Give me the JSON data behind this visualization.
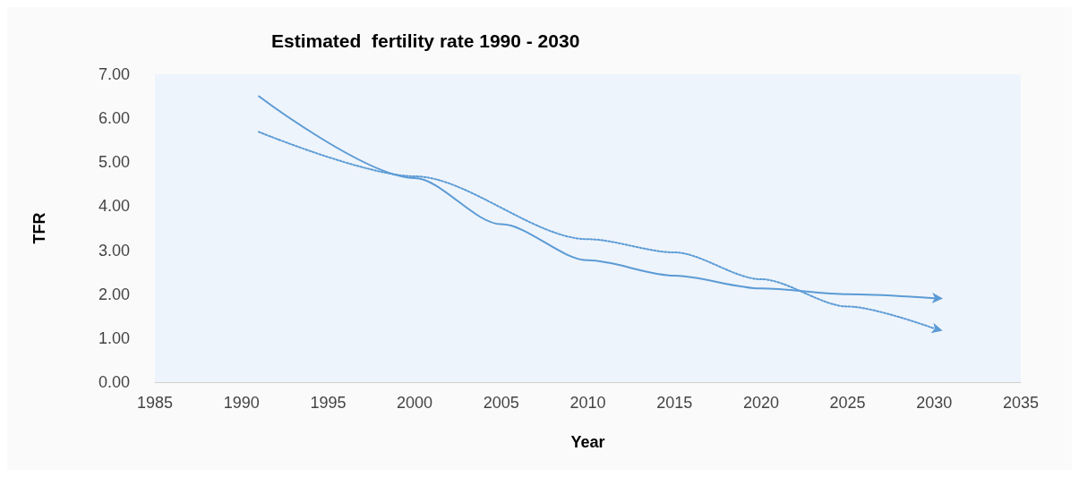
{
  "chart_data": {
    "type": "line",
    "title": "Estimated  fertility rate 1990 - 2030",
    "xlabel": "Year",
    "ylabel": "TFR",
    "xlim": [
      1985,
      2035
    ],
    "xticks": [
      1985,
      1990,
      1995,
      2000,
      2005,
      2010,
      2015,
      2020,
      2025,
      2030,
      2035
    ],
    "ylim": [
      0,
      7
    ],
    "yticks": [
      {
        "value": 0,
        "label": "0.00"
      },
      {
        "value": 1,
        "label": "1.00"
      },
      {
        "value": 2,
        "label": "2.00"
      },
      {
        "value": 3,
        "label": "3.00"
      },
      {
        "value": 4,
        "label": "4.00"
      },
      {
        "value": 5,
        "label": "5.00"
      },
      {
        "value": 6,
        "label": "6.00"
      },
      {
        "value": 7,
        "label": "7.00"
      }
    ],
    "grid": false,
    "marker": "none",
    "series": [
      {
        "color": "#5b9bd5",
        "line_style": "solid",
        "x": [
          1991,
          2000,
          2005,
          2010,
          2015,
          2020,
          2025,
          2030
        ],
        "values": [
          6.5,
          4.64,
          3.59,
          2.77,
          2.42,
          2.13,
          2.0,
          1.91
        ]
      },
      {
        "color": "#5b9bd5",
        "line_style": "dotted",
        "x": [
          1991,
          2000,
          2010,
          2015,
          2020,
          2025,
          2030
        ],
        "values": [
          5.69,
          4.68,
          3.25,
          2.95,
          2.34,
          1.72,
          1.22
        ]
      }
    ]
  }
}
